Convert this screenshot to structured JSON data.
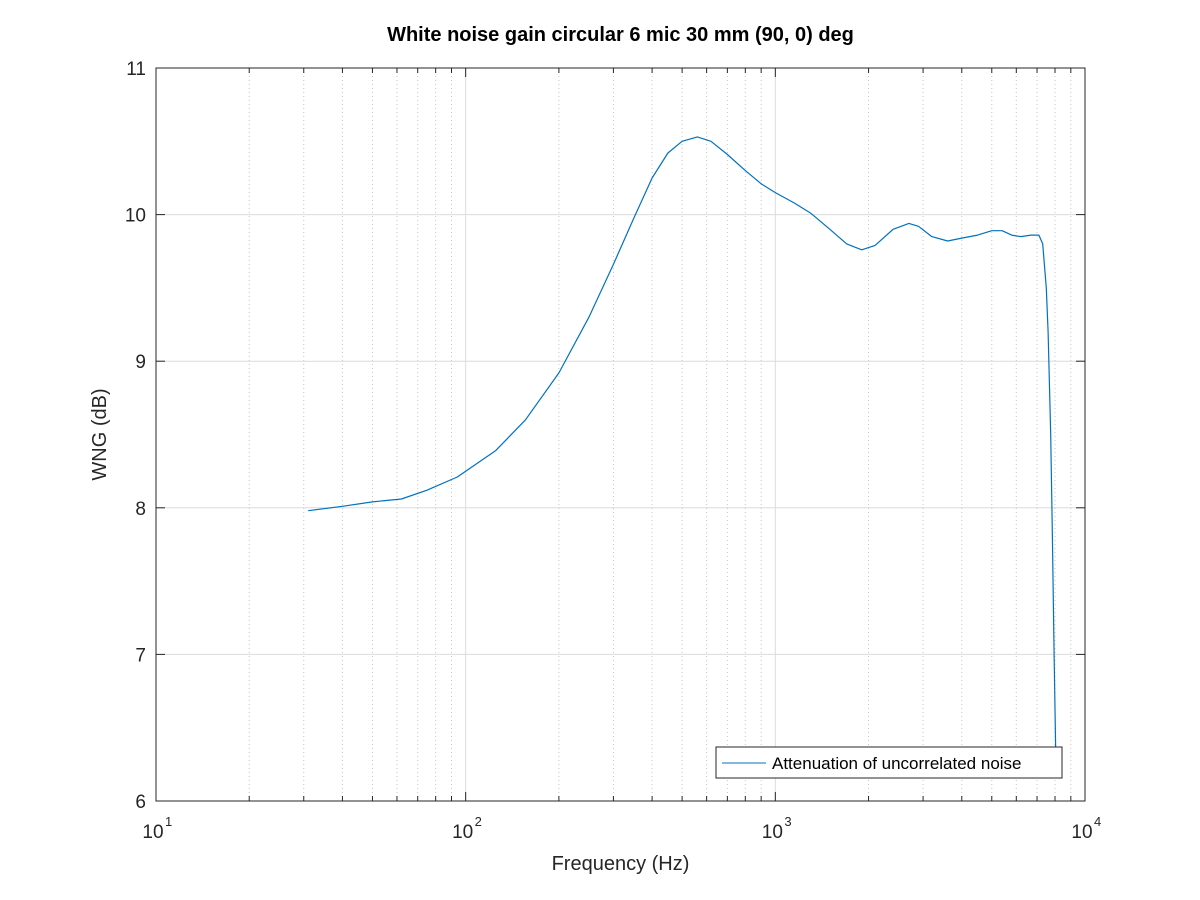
{
  "chart_data": {
    "type": "line",
    "title": "White noise gain circular 6 mic 30 mm (90, 0) deg",
    "xlabel": "Frequency (Hz)",
    "ylabel": "WNG (dB)",
    "xscale": "log",
    "xlim": [
      10,
      10000
    ],
    "ylim": [
      6,
      11
    ],
    "grid": true,
    "minor_grid_x": true,
    "legend_location": "bottom-right",
    "xticks": [
      {
        "value": 10,
        "base": "10",
        "exp": "1"
      },
      {
        "value": 100,
        "base": "10",
        "exp": "2"
      },
      {
        "value": 1000,
        "base": "10",
        "exp": "3"
      },
      {
        "value": 10000,
        "base": "10",
        "exp": "4"
      }
    ],
    "yticks": [
      {
        "value": 6,
        "label": "6"
      },
      {
        "value": 7,
        "label": "7"
      },
      {
        "value": 8,
        "label": "8"
      },
      {
        "value": 9,
        "label": "9"
      },
      {
        "value": 10,
        "label": "10"
      },
      {
        "value": 11,
        "label": "11"
      }
    ],
    "series": [
      {
        "name": "Attenuation of uncorrelated noise",
        "color": "#0072bd",
        "x": [
          31,
          40,
          50,
          62,
          75,
          94,
          125,
          156,
          200,
          250,
          300,
          350,
          400,
          450,
          500,
          560,
          620,
          700,
          800,
          900,
          1000,
          1150,
          1300,
          1500,
          1700,
          1900,
          2100,
          2400,
          2700,
          2900,
          3200,
          3600,
          4000,
          4500,
          5000,
          5400,
          5800,
          6200,
          6700,
          7100,
          7300,
          7500,
          7600,
          7750,
          7850,
          7950,
          8050
        ],
        "y": [
          7.98,
          8.01,
          8.04,
          8.06,
          8.12,
          8.21,
          8.39,
          8.6,
          8.92,
          9.3,
          9.66,
          9.98,
          10.25,
          10.42,
          10.5,
          10.53,
          10.5,
          10.41,
          10.3,
          10.21,
          10.15,
          10.08,
          10.01,
          9.9,
          9.8,
          9.76,
          9.79,
          9.9,
          9.94,
          9.92,
          9.85,
          9.82,
          9.84,
          9.86,
          9.89,
          9.89,
          9.86,
          9.85,
          9.86,
          9.86,
          9.8,
          9.5,
          9.2,
          8.5,
          7.8,
          7.0,
          6.3
        ]
      }
    ]
  }
}
